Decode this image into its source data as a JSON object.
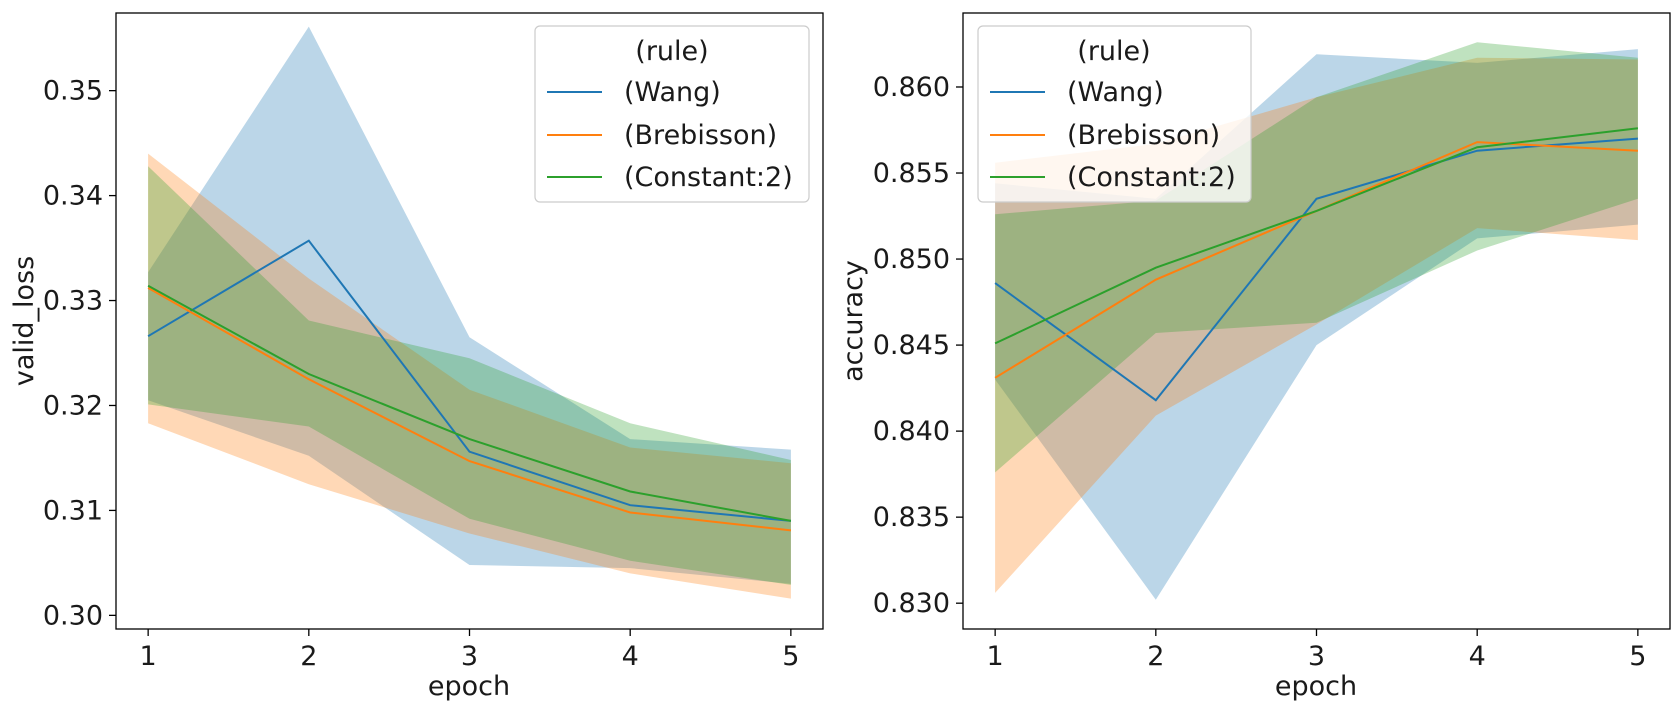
{
  "chart_data": [
    {
      "type": "line",
      "xlabel": "epoch",
      "ylabel": "valid_loss",
      "x": [
        1,
        2,
        3,
        4,
        5
      ],
      "xlim": [
        0.8,
        5.2
      ],
      "ylim": [
        0.2987,
        0.3574
      ],
      "yticks": [
        0.3,
        0.31,
        0.32,
        0.33,
        0.34,
        0.35
      ],
      "ytick_labels": [
        "0.30",
        "0.31",
        "0.32",
        "0.33",
        "0.34",
        "0.35"
      ],
      "legend": {
        "title": "(rule)",
        "placement": "top-right"
      },
      "series": [
        {
          "name": "(Wang)",
          "color": "#1f77b4",
          "values": [
            0.3266,
            0.3357,
            0.3156,
            0.3105,
            0.309
          ],
          "lower": [
            0.3205,
            0.3152,
            0.3048,
            0.3045,
            0.303
          ],
          "upper": [
            0.3327,
            0.3561,
            0.3265,
            0.3168,
            0.3158
          ]
        },
        {
          "name": "(Brebisson)",
          "color": "#ff7f0e",
          "values": [
            0.3312,
            0.3225,
            0.3147,
            0.3098,
            0.3081
          ],
          "lower": [
            0.3183,
            0.3125,
            0.3078,
            0.304,
            0.3016
          ],
          "upper": [
            0.344,
            0.3321,
            0.3215,
            0.316,
            0.3145
          ]
        },
        {
          "name": "(Constant:2)",
          "color": "#2ca02c",
          "values": [
            0.3314,
            0.323,
            0.3168,
            0.3118,
            0.309
          ],
          "lower": [
            0.3201,
            0.318,
            0.3092,
            0.3052,
            0.3029
          ],
          "upper": [
            0.3428,
            0.3281,
            0.3245,
            0.3183,
            0.3148
          ]
        }
      ]
    },
    {
      "type": "line",
      "xlabel": "epoch",
      "ylabel": "accuracy",
      "x": [
        1,
        2,
        3,
        4,
        5
      ],
      "xlim": [
        0.8,
        5.2
      ],
      "ylim": [
        0.8285,
        0.8643
      ],
      "yticks": [
        0.83,
        0.835,
        0.84,
        0.845,
        0.85,
        0.855,
        0.86
      ],
      "ytick_labels": [
        "0.830",
        "0.835",
        "0.840",
        "0.845",
        "0.850",
        "0.855",
        "0.860"
      ],
      "legend": {
        "title": "(rule)",
        "placement": "top-left"
      },
      "series": [
        {
          "name": "(Wang)",
          "color": "#1f77b4",
          "values": [
            0.8486,
            0.8418,
            0.8535,
            0.8563,
            0.857
          ],
          "lower": [
            0.843,
            0.8302,
            0.845,
            0.8512,
            0.852
          ],
          "upper": [
            0.8544,
            0.8535,
            0.8619,
            0.8614,
            0.8622
          ]
        },
        {
          "name": "(Brebisson)",
          "color": "#ff7f0e",
          "values": [
            0.8431,
            0.8488,
            0.8528,
            0.8568,
            0.8563
          ],
          "lower": [
            0.8306,
            0.8409,
            0.8462,
            0.8518,
            0.8511
          ],
          "upper": [
            0.8556,
            0.8567,
            0.8594,
            0.8617,
            0.8616
          ]
        },
        {
          "name": "(Constant:2)",
          "color": "#2ca02c",
          "values": [
            0.8451,
            0.8495,
            0.8528,
            0.8565,
            0.8576
          ],
          "lower": [
            0.8376,
            0.8457,
            0.8463,
            0.8505,
            0.8535
          ],
          "upper": [
            0.8526,
            0.8534,
            0.8594,
            0.8626,
            0.8617
          ]
        }
      ]
    }
  ]
}
